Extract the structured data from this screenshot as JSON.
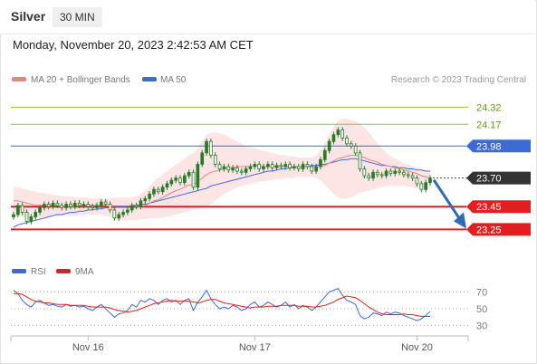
{
  "header": {
    "instrument": "Silver",
    "timeframe": "30 MIN"
  },
  "timestamp": "Monday, November 20, 2023 2:42:53 AM CET",
  "legend": {
    "ma20_label": "MA 20 + Bollinger Bands",
    "ma50_label": "MA 50",
    "credit": "Research © 2023 Trading Central"
  },
  "rsi_legend": {
    "rsi_label": "RSI",
    "ma_label": "9MA"
  },
  "colors": {
    "resistance": "#8dc63f",
    "ma50": "#3d6bd4",
    "ma20": "#f08080",
    "bands": "#fde0e0",
    "support": "#e02020",
    "arrow": "#2f6db3",
    "last": "#333333",
    "candle": "#2a7a2a"
  },
  "chart_data": [
    {
      "type": "candlestick",
      "title": "Silver 30 MIN",
      "ylim": [
        23.15,
        24.45
      ],
      "x_ticks": [
        {
          "label": "Nov 16",
          "index": 17
        },
        {
          "label": "Nov 17",
          "index": 55
        },
        {
          "label": "Nov 20",
          "index": 92
        }
      ],
      "levels": [
        {
          "value": 24.32,
          "label": "24.32",
          "kind": "resistance"
        },
        {
          "value": 24.17,
          "label": "24.17",
          "kind": "resistance"
        },
        {
          "value": 23.98,
          "label": "23.98",
          "kind": "pivot"
        },
        {
          "value": 23.7,
          "label": "23.70",
          "kind": "last"
        },
        {
          "value": 23.45,
          "label": "23.45",
          "kind": "support"
        },
        {
          "value": 23.25,
          "label": "23.25",
          "kind": "support"
        }
      ],
      "forecast_arrow": {
        "from": 23.7,
        "to": 23.25
      },
      "close": [
        23.38,
        23.46,
        23.4,
        23.32,
        23.36,
        23.4,
        23.44,
        23.47,
        23.45,
        23.48,
        23.46,
        23.44,
        23.47,
        23.45,
        23.48,
        23.46,
        23.47,
        23.45,
        23.44,
        23.46,
        23.49,
        23.47,
        23.42,
        23.35,
        23.38,
        23.4,
        23.42,
        23.46,
        23.45,
        23.5,
        23.52,
        23.56,
        23.6,
        23.58,
        23.62,
        23.65,
        23.68,
        23.7,
        23.66,
        23.72,
        23.75,
        23.62,
        23.82,
        23.92,
        24.02,
        23.9,
        23.82,
        23.78,
        23.8,
        23.77,
        23.79,
        23.76,
        23.75,
        23.78,
        23.8,
        23.82,
        23.78,
        23.8,
        23.82,
        23.79,
        23.81,
        23.8,
        23.82,
        23.79,
        23.8,
        23.78,
        23.82,
        23.8,
        23.76,
        23.8,
        23.86,
        23.94,
        24.02,
        24.08,
        24.12,
        24.05,
        24.0,
        23.98,
        23.92,
        23.78,
        23.72,
        23.7,
        23.75,
        23.73,
        23.72,
        23.76,
        23.74,
        23.76,
        23.75,
        23.73,
        23.72,
        23.7,
        23.65,
        23.6,
        23.66,
        23.7
      ],
      "ma20": [
        23.5,
        23.5,
        23.49,
        23.48,
        23.47,
        23.46,
        23.46,
        23.46,
        23.46,
        23.46,
        23.46,
        23.45,
        23.45,
        23.45,
        23.45,
        23.46,
        23.46,
        23.46,
        23.46,
        23.46,
        23.46,
        23.46,
        23.45,
        23.44,
        23.44,
        23.44,
        23.44,
        23.44,
        23.44,
        23.45,
        23.46,
        23.48,
        23.5,
        23.51,
        23.53,
        23.55,
        23.57,
        23.59,
        23.6,
        23.62,
        23.64,
        23.64,
        23.67,
        23.7,
        23.73,
        23.75,
        23.76,
        23.77,
        23.78,
        23.79,
        23.79,
        23.8,
        23.8,
        23.8,
        23.8,
        23.81,
        23.81,
        23.8,
        23.8,
        23.8,
        23.8,
        23.8,
        23.8,
        23.8,
        23.8,
        23.8,
        23.8,
        23.8,
        23.8,
        23.8,
        23.8,
        23.81,
        23.83,
        23.85,
        23.87,
        23.88,
        23.89,
        23.9,
        23.9,
        23.89,
        23.88,
        23.86,
        23.85,
        23.84,
        23.82,
        23.81,
        23.8,
        23.79,
        23.78,
        23.77,
        23.76,
        23.75,
        23.74,
        23.72,
        23.71,
        23.7
      ],
      "upper_band": [
        23.62,
        23.62,
        23.61,
        23.6,
        23.59,
        23.58,
        23.57,
        23.57,
        23.56,
        23.55,
        23.55,
        23.54,
        23.54,
        23.54,
        23.53,
        23.53,
        23.53,
        23.53,
        23.52,
        23.52,
        23.52,
        23.52,
        23.52,
        23.53,
        23.53,
        23.53,
        23.53,
        23.53,
        23.54,
        23.56,
        23.59,
        23.63,
        23.67,
        23.7,
        23.73,
        23.76,
        23.79,
        23.82,
        23.84,
        23.87,
        23.9,
        23.92,
        23.96,
        24.02,
        24.08,
        24.1,
        24.1,
        24.09,
        24.08,
        24.06,
        24.04,
        24.02,
        24.0,
        23.98,
        23.97,
        23.96,
        23.95,
        23.94,
        23.93,
        23.92,
        23.91,
        23.9,
        23.9,
        23.89,
        23.89,
        23.88,
        23.88,
        23.88,
        23.88,
        23.9,
        23.94,
        24.0,
        24.08,
        24.15,
        24.2,
        24.22,
        24.22,
        24.21,
        24.2,
        24.18,
        24.14,
        24.1,
        24.05,
        24.0,
        23.96,
        23.92,
        23.89,
        23.87,
        23.85,
        23.83,
        23.82,
        23.8,
        23.79,
        23.78,
        23.77,
        23.76
      ],
      "lower_band": [
        23.38,
        23.37,
        23.36,
        23.35,
        23.34,
        23.34,
        23.35,
        23.35,
        23.36,
        23.37,
        23.37,
        23.37,
        23.37,
        23.37,
        23.37,
        23.38,
        23.38,
        23.38,
        23.38,
        23.38,
        23.38,
        23.37,
        23.36,
        23.34,
        23.33,
        23.33,
        23.33,
        23.33,
        23.33,
        23.34,
        23.34,
        23.35,
        23.35,
        23.35,
        23.35,
        23.36,
        23.37,
        23.38,
        23.39,
        23.4,
        23.41,
        23.42,
        23.43,
        23.44,
        23.45,
        23.47,
        23.5,
        23.53,
        23.56,
        23.58,
        23.6,
        23.62,
        23.63,
        23.64,
        23.65,
        23.66,
        23.67,
        23.67,
        23.68,
        23.68,
        23.69,
        23.69,
        23.7,
        23.7,
        23.7,
        23.71,
        23.71,
        23.71,
        23.71,
        23.7,
        23.68,
        23.64,
        23.6,
        23.56,
        23.53,
        23.52,
        23.52,
        23.53,
        23.55,
        23.57,
        23.58,
        23.59,
        23.6,
        23.61,
        23.62,
        23.63,
        23.63,
        23.63,
        23.63,
        23.63,
        23.62,
        23.62,
        23.61,
        23.6,
        23.6,
        23.6
      ],
      "ma50": [
        23.27,
        23.29,
        23.3,
        23.31,
        23.32,
        23.33,
        23.34,
        23.35,
        23.36,
        23.37,
        23.38,
        23.38,
        23.39,
        23.4,
        23.4,
        23.41,
        23.41,
        23.42,
        23.42,
        23.43,
        23.43,
        23.44,
        23.44,
        23.44,
        23.45,
        23.45,
        23.45,
        23.46,
        23.46,
        23.47,
        23.47,
        23.48,
        23.49,
        23.5,
        23.51,
        23.52,
        23.53,
        23.54,
        23.55,
        23.56,
        23.57,
        23.58,
        23.59,
        23.6,
        23.61,
        23.63,
        23.64,
        23.65,
        23.66,
        23.67,
        23.68,
        23.69,
        23.7,
        23.71,
        23.72,
        23.73,
        23.74,
        23.75,
        23.76,
        23.76,
        23.77,
        23.78,
        23.78,
        23.79,
        23.79,
        23.8,
        23.8,
        23.8,
        23.81,
        23.81,
        23.82,
        23.82,
        23.83,
        23.84,
        23.85,
        23.86,
        23.86,
        23.87,
        23.87,
        23.86,
        23.85,
        23.84,
        23.83,
        23.82,
        23.81,
        23.81,
        23.8,
        23.8,
        23.79,
        23.79,
        23.78,
        23.78,
        23.77,
        23.77,
        23.76,
        23.76
      ]
    },
    {
      "type": "line",
      "title": "RSI",
      "ylim": [
        20,
        80
      ],
      "y_ticks": [
        70,
        50,
        30
      ],
      "series": [
        {
          "name": "RSI",
          "values": [
            72,
            68,
            60,
            55,
            52,
            58,
            60,
            57,
            54,
            55,
            53,
            52,
            55,
            53,
            54,
            52,
            53,
            50,
            48,
            52,
            55,
            50,
            45,
            40,
            44,
            45,
            48,
            55,
            52,
            60,
            58,
            62,
            60,
            55,
            60,
            62,
            58,
            60,
            55,
            60,
            62,
            48,
            58,
            64,
            72,
            62,
            55,
            50,
            52,
            50,
            54,
            52,
            48,
            50,
            55,
            58,
            52,
            54,
            58,
            55,
            52,
            54,
            58,
            52,
            55,
            50,
            54,
            52,
            48,
            52,
            58,
            64,
            70,
            72,
            74,
            66,
            60,
            58,
            55,
            42,
            38,
            40,
            45,
            44,
            42,
            46,
            44,
            46,
            45,
            42,
            40,
            38,
            36,
            38,
            42,
            47
          ]
        },
        {
          "name": "9MA",
          "values": [
            68,
            68,
            67,
            64,
            61,
            59,
            58,
            57,
            57,
            56,
            55,
            55,
            55,
            54,
            54,
            54,
            54,
            53,
            52,
            52,
            52,
            52,
            51,
            49,
            48,
            47,
            46,
            47,
            48,
            50,
            52,
            54,
            56,
            57,
            58,
            59,
            60,
            59,
            59,
            59,
            59,
            58,
            57,
            58,
            60,
            61,
            61,
            59,
            57,
            56,
            55,
            54,
            53,
            52,
            51,
            52,
            52,
            52,
            53,
            53,
            53,
            54,
            54,
            54,
            54,
            53,
            53,
            53,
            52,
            52,
            53,
            54,
            56,
            58,
            61,
            63,
            65,
            64,
            63,
            60,
            56,
            52,
            49,
            46,
            44,
            43,
            43,
            43,
            43,
            44,
            43,
            43,
            42,
            41,
            41,
            41
          ]
        }
      ]
    }
  ]
}
